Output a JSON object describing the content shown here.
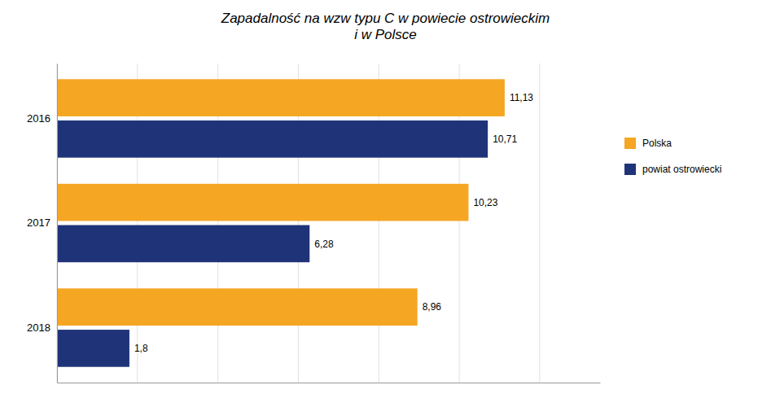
{
  "chart_data": {
    "type": "bar",
    "orientation": "horizontal",
    "title": "Zapadalność na wzw typu C w powiecie ostrowieckim\ni w Polsce",
    "categories": [
      "2016",
      "2017",
      "2018"
    ],
    "series": [
      {
        "name": "Polska",
        "color": "#F5A623",
        "values": [
          11.13,
          10.23,
          8.96
        ],
        "value_labels": [
          "11,13",
          "10,23",
          "8,96"
        ]
      },
      {
        "name": "powiat ostrowiecki",
        "color": "#1F3478",
        "values": [
          10.71,
          6.28,
          1.8
        ],
        "value_labels": [
          "10,71",
          "6,28",
          "1,8"
        ]
      }
    ],
    "xlim": [
      0,
      13.5
    ],
    "xticks": [
      0,
      2,
      4,
      6,
      8,
      10,
      12
    ],
    "grid": true,
    "tick_labels": "y",
    "data_labels": true,
    "legend": "right"
  }
}
